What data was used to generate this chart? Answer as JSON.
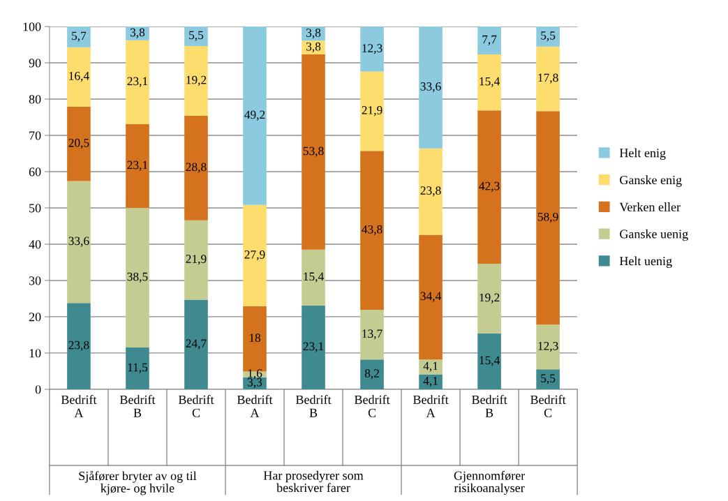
{
  "chart_data": {
    "type": "bar",
    "stacked": true,
    "categories": [
      "Bedrift\nA",
      "Bedrift\nB",
      "Bedrift\nC",
      "Bedrift\nA",
      "Bedrift\nB",
      "Bedrift\nC",
      "Bedrift\nA",
      "Bedrift\nB",
      "Bedrift\nC"
    ],
    "series": [
      {
        "name": "Helt uenig",
        "color": "#3f8a8f",
        "values": [
          23.8,
          11.5,
          24.7,
          3.3,
          23.1,
          8.2,
          4.1,
          15.4,
          5.5
        ],
        "value_labels": [
          "23,8",
          "11,5",
          "24,7",
          "3,3",
          "23,1",
          "8,2",
          "4,1",
          "15,4",
          "5,5"
        ]
      },
      {
        "name": "Ganske uenig",
        "color": "#c4cc91",
        "values": [
          33.6,
          38.5,
          21.9,
          1.6,
          15.4,
          13.7,
          4.1,
          19.2,
          12.3
        ],
        "value_labels": [
          "33,6",
          "38,5",
          "21,9",
          "1,6",
          "15,4",
          "13,7",
          "4,1",
          "19,2",
          "12,3"
        ]
      },
      {
        "name": "Verken eller",
        "color": "#d5721d",
        "values": [
          20.5,
          23.1,
          28.8,
          18,
          53.8,
          43.8,
          34.4,
          42.3,
          58.9
        ],
        "value_labels": [
          "20,5",
          "23,1",
          "28,8",
          "18",
          "53,8",
          "43,8",
          "34,4",
          "42,3",
          "58,9"
        ]
      },
      {
        "name": "Ganske enig",
        "color": "#fedd6f",
        "values": [
          16.4,
          23.1,
          19.2,
          27.9,
          3.8,
          21.9,
          23.8,
          15.4,
          17.8
        ],
        "value_labels": [
          "16,4",
          "23,1",
          "19,2",
          "27,9",
          "3,8",
          "21,9",
          "23,8",
          "15,4",
          "17,8"
        ]
      },
      {
        "name": "Helt enig",
        "color": "#8ccae0",
        "values": [
          5.7,
          3.8,
          5.5,
          49.2,
          3.8,
          12.3,
          33.6,
          7.7,
          5.5
        ],
        "value_labels": [
          "5,7",
          "3,8",
          "5,5",
          "49,2",
          "3,8",
          "12,3",
          "33,6",
          "7,7",
          "5,5"
        ]
      }
    ],
    "annotations": [
      "Sjåfører bryter av og til\nkjøre- og hvile",
      "Har prosedyrer som\nbeskriver farer",
      "Gjennomfører\nrisikoanalyser"
    ],
    "ylim": [
      0,
      100
    ],
    "yticks": [
      0,
      10,
      20,
      30,
      40,
      50,
      60,
      70,
      80,
      90,
      100
    ],
    "grid": "y",
    "legend": "right"
  }
}
